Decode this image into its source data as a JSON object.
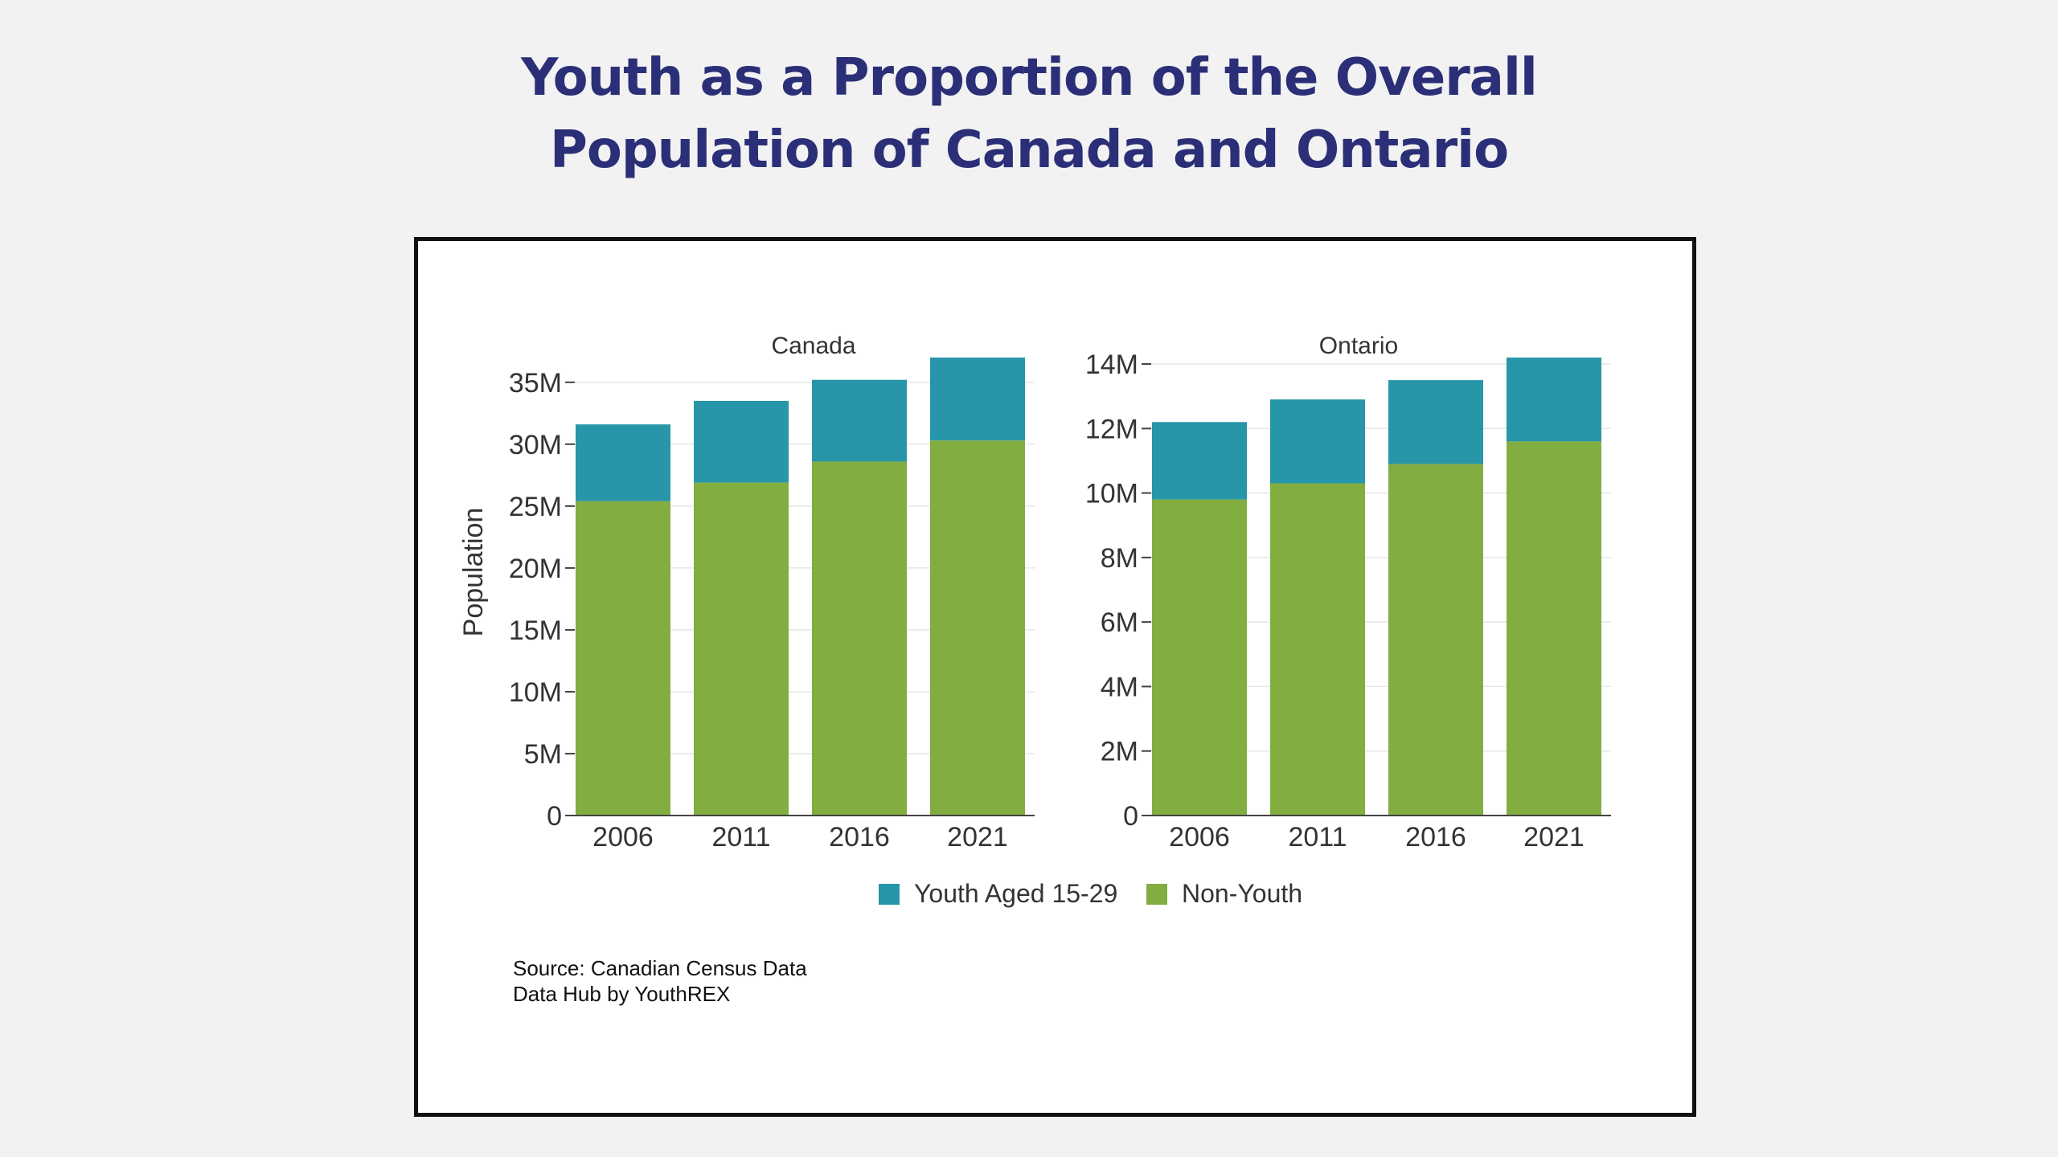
{
  "title": {
    "line1": "Youth as a Proportion of the Overall",
    "line2": "Population of Canada and Ontario"
  },
  "colors": {
    "background": "#f2f2f2",
    "title": "#2b2f78",
    "youth": "#2796a8",
    "non_youth": "#82ad40",
    "frame": "#111111",
    "grid": "#e6e6e6"
  },
  "chart_data": [
    {
      "type": "bar",
      "stacked": true,
      "title": "Canada",
      "ylabel": "Population",
      "categories": [
        "2006",
        "2011",
        "2016",
        "2021"
      ],
      "ylim": [
        0,
        37000000
      ],
      "yticks": [
        0,
        5000000,
        10000000,
        15000000,
        20000000,
        25000000,
        30000000,
        35000000
      ],
      "ytick_labels": [
        "0",
        "5M",
        "10M",
        "15M",
        "20M",
        "25M",
        "30M",
        "35M"
      ],
      "series": [
        {
          "name": "Non-Youth",
          "values": [
            25400000,
            26900000,
            28600000,
            30300000
          ]
        },
        {
          "name": "Youth Aged 15-29",
          "values": [
            6200000,
            6600000,
            6600000,
            6700000
          ]
        }
      ]
    },
    {
      "type": "bar",
      "stacked": true,
      "title": "Ontario",
      "categories": [
        "2006",
        "2011",
        "2016",
        "2021"
      ],
      "ylim": [
        0,
        14200000
      ],
      "yticks": [
        0,
        2000000,
        4000000,
        6000000,
        8000000,
        10000000,
        12000000,
        14000000
      ],
      "ytick_labels": [
        "0",
        "2M",
        "4M",
        "6M",
        "8M",
        "10M",
        "12M",
        "14M"
      ],
      "series": [
        {
          "name": "Non-Youth",
          "values": [
            9800000,
            10300000,
            10900000,
            11600000
          ]
        },
        {
          "name": "Youth Aged 15-29",
          "values": [
            2400000,
            2600000,
            2600000,
            2600000
          ]
        }
      ]
    }
  ],
  "legend": {
    "position": "bottom-center",
    "items": [
      {
        "label": "Youth Aged 15-29",
        "color": "#2796a8"
      },
      {
        "label": "Non-Youth",
        "color": "#82ad40"
      }
    ]
  },
  "source": {
    "line1": "Source: Canadian Census Data",
    "line2": "Data Hub by YouthREX"
  }
}
